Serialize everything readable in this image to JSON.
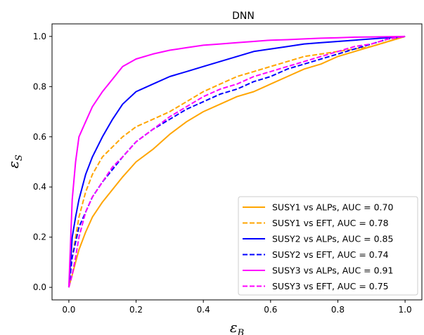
{
  "chart_data": {
    "type": "line",
    "title": "DNN",
    "xlabel": "ε",
    "xlabel_sub": "B",
    "ylabel": "ε",
    "ylabel_sub": "S",
    "xlim": [
      -0.05,
      1.05
    ],
    "ylim": [
      -0.05,
      1.05
    ],
    "xticks": [
      "0.0",
      "0.2",
      "0.4",
      "0.6",
      "0.8",
      "1.0"
    ],
    "yticks": [
      "0.0",
      "0.2",
      "0.4",
      "0.6",
      "0.8",
      "1.0"
    ],
    "grid": false,
    "legend_position": "lower-right",
    "series": [
      {
        "name": "SUSY1 vs ALPs, AUC = 0.70",
        "color": "#ffa500",
        "style": "solid",
        "x": [
          0.0,
          0.01,
          0.02,
          0.03,
          0.05,
          0.07,
          0.1,
          0.13,
          0.16,
          0.2,
          0.25,
          0.3,
          0.35,
          0.4,
          0.45,
          0.5,
          0.55,
          0.6,
          0.65,
          0.7,
          0.75,
          0.8,
          0.85,
          0.9,
          0.95,
          1.0
        ],
        "y": [
          0.0,
          0.05,
          0.1,
          0.15,
          0.22,
          0.28,
          0.34,
          0.39,
          0.44,
          0.5,
          0.55,
          0.61,
          0.66,
          0.7,
          0.73,
          0.76,
          0.78,
          0.81,
          0.84,
          0.87,
          0.89,
          0.92,
          0.94,
          0.96,
          0.98,
          1.0
        ]
      },
      {
        "name": "SUSY1 vs EFT, AUC = 0.78",
        "color": "#ffa500",
        "style": "dashed",
        "x": [
          0.0,
          0.01,
          0.02,
          0.03,
          0.05,
          0.07,
          0.1,
          0.13,
          0.16,
          0.2,
          0.25,
          0.3,
          0.35,
          0.4,
          0.45,
          0.5,
          0.55,
          0.6,
          0.65,
          0.7,
          0.75,
          0.8,
          0.85,
          0.9,
          0.95,
          1.0
        ],
        "y": [
          0.0,
          0.12,
          0.2,
          0.28,
          0.38,
          0.45,
          0.52,
          0.56,
          0.6,
          0.64,
          0.67,
          0.7,
          0.74,
          0.78,
          0.81,
          0.84,
          0.86,
          0.88,
          0.9,
          0.92,
          0.93,
          0.94,
          0.95,
          0.96,
          0.98,
          1.0
        ]
      },
      {
        "name": "SUSY2 vs ALPs, AUC = 0.85",
        "color": "#0000ff",
        "style": "solid",
        "x": [
          0.0,
          0.01,
          0.02,
          0.03,
          0.05,
          0.07,
          0.1,
          0.13,
          0.16,
          0.2,
          0.25,
          0.3,
          0.35,
          0.4,
          0.45,
          0.5,
          0.55,
          0.6,
          0.65,
          0.7,
          0.75,
          0.8,
          0.85,
          0.9,
          0.95,
          1.0
        ],
        "y": [
          0.0,
          0.2,
          0.28,
          0.35,
          0.45,
          0.52,
          0.6,
          0.67,
          0.73,
          0.78,
          0.81,
          0.84,
          0.86,
          0.88,
          0.9,
          0.92,
          0.94,
          0.95,
          0.96,
          0.97,
          0.975,
          0.98,
          0.985,
          0.99,
          0.995,
          1.0
        ]
      },
      {
        "name": "SUSY2 vs EFT, AUC = 0.74",
        "color": "#0000ff",
        "style": "dashed",
        "x": [
          0.0,
          0.01,
          0.02,
          0.03,
          0.05,
          0.07,
          0.1,
          0.13,
          0.16,
          0.2,
          0.25,
          0.3,
          0.35,
          0.4,
          0.45,
          0.5,
          0.55,
          0.6,
          0.65,
          0.7,
          0.75,
          0.8,
          0.85,
          0.9,
          0.95,
          1.0
        ],
        "y": [
          0.0,
          0.12,
          0.18,
          0.24,
          0.3,
          0.36,
          0.42,
          0.47,
          0.52,
          0.58,
          0.63,
          0.67,
          0.71,
          0.74,
          0.77,
          0.79,
          0.82,
          0.84,
          0.87,
          0.89,
          0.91,
          0.93,
          0.95,
          0.97,
          0.99,
          1.0
        ]
      },
      {
        "name": "SUSY3 vs ALPs, AUC = 0.91",
        "color": "#ff00ff",
        "style": "solid",
        "x": [
          0.0,
          0.01,
          0.02,
          0.03,
          0.05,
          0.07,
          0.1,
          0.13,
          0.16,
          0.2,
          0.25,
          0.3,
          0.35,
          0.4,
          0.45,
          0.5,
          0.55,
          0.6,
          0.65,
          0.7,
          0.75,
          0.8,
          0.85,
          0.9,
          0.95,
          1.0
        ],
        "y": [
          0.0,
          0.35,
          0.5,
          0.6,
          0.66,
          0.72,
          0.78,
          0.83,
          0.88,
          0.91,
          0.93,
          0.945,
          0.955,
          0.965,
          0.97,
          0.975,
          0.98,
          0.985,
          0.987,
          0.99,
          0.993,
          0.995,
          0.997,
          0.998,
          0.999,
          1.0
        ]
      },
      {
        "name": "SUSY3 vs EFT, AUC = 0.75",
        "color": "#ff00ff",
        "style": "dashed",
        "x": [
          0.0,
          0.01,
          0.02,
          0.03,
          0.05,
          0.07,
          0.1,
          0.13,
          0.16,
          0.2,
          0.25,
          0.3,
          0.35,
          0.4,
          0.45,
          0.5,
          0.55,
          0.6,
          0.65,
          0.7,
          0.75,
          0.8,
          0.85,
          0.9,
          0.95,
          1.0
        ],
        "y": [
          0.0,
          0.05,
          0.12,
          0.2,
          0.3,
          0.36,
          0.42,
          0.48,
          0.52,
          0.58,
          0.63,
          0.68,
          0.72,
          0.76,
          0.79,
          0.81,
          0.84,
          0.86,
          0.88,
          0.9,
          0.92,
          0.94,
          0.96,
          0.97,
          0.99,
          1.0
        ]
      }
    ]
  }
}
